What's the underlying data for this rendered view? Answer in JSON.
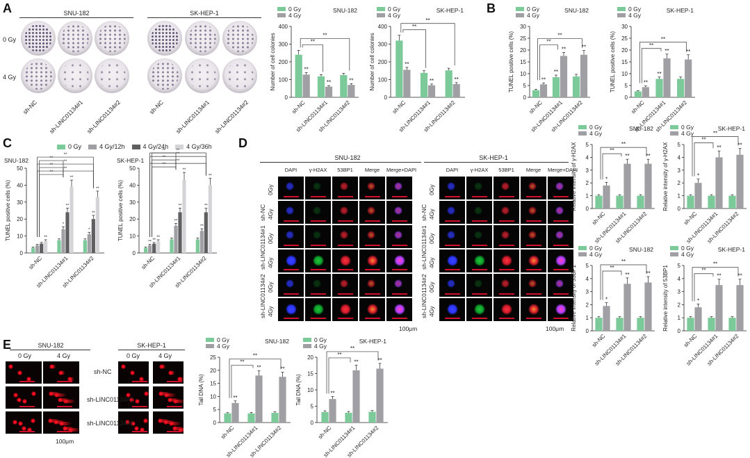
{
  "colors": {
    "green": "#7cc99a",
    "gray": "#a0a0a4",
    "darkgray": "#5f5f62",
    "lightgray": "#d4d4d6",
    "axis": "#222222"
  },
  "panelA": {
    "letter": "A",
    "groups": [
      {
        "title": "SNU-182"
      },
      {
        "title": "SK-HEP-1"
      }
    ],
    "rows": [
      "0 Gy",
      "4 Gy"
    ],
    "cols": [
      "sh-NC",
      "sh-LINC01134#1",
      "sh-LINC01134#2"
    ]
  },
  "panelB": {
    "letter": "B"
  },
  "panelC": {
    "letter": "C",
    "legend": [
      "0 Gy",
      "4 Gy/12h",
      "4 Gy/24h",
      "4 Gy/36h"
    ]
  },
  "panelD": {
    "letter": "D",
    "groups": [
      {
        "title": "SNU-182"
      },
      {
        "title": "SK-HEP-1"
      }
    ],
    "columns": [
      "DAPI",
      "γ-H2AX",
      "53BP1",
      "Merge",
      "Merge+DAPI"
    ],
    "rowGroups": [
      "sh-NC",
      "sh-LINC01134#1",
      "sh-LINC01134#2"
    ],
    "doses": [
      "0Gy",
      "4Gy"
    ],
    "scale": "100μm"
  },
  "panelE": {
    "letter": "E",
    "groups": [
      {
        "title": "SNU-182"
      },
      {
        "title": "SK-HEP-1"
      }
    ],
    "doses": [
      "0 Gy",
      "4 Gy"
    ],
    "rows": [
      "sh-NC",
      "sh-LINC01134#1",
      "sh-LINC01134#2"
    ],
    "scale": "100μm"
  },
  "chart_data": [
    {
      "id": "A-SNU",
      "type": "bar",
      "title": "SNU-182",
      "ylabel": "Number of cell colonies",
      "categories": [
        "sh-NC",
        "sh-LINC01134#1",
        "sh-LINC01134#2"
      ],
      "ylim": [
        0,
        400
      ],
      "yticks": [
        0,
        100,
        200,
        300,
        400
      ],
      "series": [
        {
          "name": "0 Gy",
          "values": [
            240,
            118,
            125
          ],
          "errors": [
            25,
            10,
            10
          ]
        },
        {
          "name": "4 Gy",
          "values": [
            128,
            60,
            70
          ],
          "errors": [
            12,
            6,
            7
          ]
        }
      ],
      "marks": [
        [
          "",
          "**"
        ],
        [
          "",
          "**"
        ],
        [
          "",
          "**"
        ]
      ],
      "brackets": [
        "**",
        "**"
      ]
    },
    {
      "id": "A-SK",
      "type": "bar",
      "title": "SK-HEP-1",
      "ylabel": "Number of cell colonies",
      "categories": [
        "sh-NC",
        "sh-LINC01134#1",
        "sh-LINC01134#2"
      ],
      "ylim": [
        0,
        400
      ],
      "yticks": [
        0,
        100,
        200,
        300,
        400
      ],
      "series": [
        {
          "name": "0 Gy",
          "values": [
            320,
            138,
            152
          ],
          "errors": [
            30,
            12,
            12
          ]
        },
        {
          "name": "4 Gy",
          "values": [
            155,
            68,
            75
          ],
          "errors": [
            14,
            7,
            8
          ]
        }
      ],
      "marks": [
        [
          "",
          "**"
        ],
        [
          "",
          "**"
        ],
        [
          "",
          "**"
        ]
      ],
      "brackets": [
        "**",
        "**"
      ]
    },
    {
      "id": "B-SNU",
      "type": "bar",
      "title": "SNU-182",
      "ylabel": "TUNEL positive cells (%)",
      "categories": [
        "sh-NC",
        "sh-LINC01134#1",
        "sh-LINC01134#2"
      ],
      "ylim": [
        0,
        30
      ],
      "yticks": [
        0,
        5,
        10,
        15,
        20,
        25,
        30
      ],
      "series": [
        {
          "name": "0 Gy",
          "values": [
            3,
            8.5,
            8.8
          ],
          "errors": [
            0.4,
            0.9,
            0.9
          ]
        },
        {
          "name": "4 Gy",
          "values": [
            5.5,
            17.5,
            18
          ],
          "errors": [
            0.6,
            1.5,
            1.8
          ]
        }
      ],
      "marks": [
        [
          "",
          "**"
        ],
        [
          "**",
          "**"
        ],
        [
          "",
          "**"
        ]
      ],
      "brackets": [
        "**",
        "**"
      ]
    },
    {
      "id": "B-SK",
      "type": "bar",
      "title": "SK-HEP-1",
      "ylabel": "TUNEL positive cells (%)",
      "categories": [
        "sh-NC",
        "sh-LINC01134#1",
        "sh-LINC01134#2"
      ],
      "ylim": [
        0,
        30
      ],
      "yticks": [
        0,
        5,
        10,
        15,
        20,
        25,
        30
      ],
      "series": [
        {
          "name": "0 Gy",
          "values": [
            2.5,
            7.8,
            7.8
          ],
          "errors": [
            0.3,
            0.8,
            0.8
          ]
        },
        {
          "name": "4 Gy",
          "values": [
            4.3,
            16.5,
            16
          ],
          "errors": [
            0.5,
            1.8,
            2
          ]
        }
      ],
      "marks": [
        [
          "",
          "**"
        ],
        [
          "**",
          "**"
        ],
        [
          "",
          "**"
        ]
      ],
      "brackets": [
        "**",
        "**"
      ]
    },
    {
      "id": "C-SNU",
      "type": "bar",
      "title": "SNU-182",
      "ylabel": "TUNEL positive cells (%)",
      "categories": [
        "sh-NC",
        "sh-LINC01134#1",
        "sh-LINC01134#2"
      ],
      "ylim": [
        0,
        50
      ],
      "yticks": [
        0,
        10,
        20,
        30,
        40,
        50
      ],
      "series": [
        {
          "name": "0 Gy",
          "values": [
            3,
            7.5,
            7.5
          ],
          "errors": [
            0.5,
            0.8,
            0.8
          ]
        },
        {
          "name": "4 Gy/12h",
          "values": [
            4.5,
            14,
            11
          ],
          "errors": [
            0.6,
            1.5,
            1.2
          ]
        },
        {
          "name": "4 Gy/24h",
          "values": [
            5.5,
            24,
            20
          ],
          "errors": [
            0.7,
            2.5,
            2.2
          ]
        },
        {
          "name": "4 Gy/36h",
          "values": [
            7,
            39,
            33
          ],
          "errors": [
            0.8,
            4,
            3.5
          ]
        }
      ],
      "marks": [
        [
          "",
          "",
          "",
          "**"
        ],
        [
          "",
          "*",
          "**",
          "**"
        ],
        [
          "",
          "*",
          "**",
          "**"
        ]
      ],
      "brackets": [
        "**",
        "**",
        "**",
        "**",
        "**",
        "**"
      ]
    },
    {
      "id": "C-SK",
      "type": "bar",
      "title": "SK-HEP-1",
      "ylabel": "TUNEL positive cells (%)",
      "categories": [
        "sh-NC",
        "sh-LINC01134#1",
        "sh-LINC01134#2"
      ],
      "ylim": [
        0,
        50
      ],
      "yticks": [
        0,
        10,
        20,
        30,
        40,
        50
      ],
      "series": [
        {
          "name": "0 Gy",
          "values": [
            3,
            8,
            8
          ],
          "errors": [
            0.5,
            0.8,
            0.8
          ]
        },
        {
          "name": "4 Gy/12h",
          "values": [
            4.5,
            16,
            13
          ],
          "errors": [
            0.6,
            1.5,
            1.3
          ]
        },
        {
          "name": "4 Gy/24h",
          "values": [
            5.5,
            24,
            24
          ],
          "errors": [
            0.7,
            2.5,
            2.4
          ]
        },
        {
          "name": "4 Gy/36h",
          "values": [
            7,
            43,
            40
          ],
          "errors": [
            0.8,
            4.5,
            4
          ]
        }
      ],
      "marks": [
        [
          "",
          "**",
          "**",
          "**"
        ],
        [
          "",
          "**",
          "**",
          "**"
        ],
        [
          "",
          "**",
          "**",
          "**"
        ]
      ],
      "brackets": [
        "**",
        "**",
        "**",
        "**",
        "**",
        "**"
      ]
    },
    {
      "id": "D-SNU-H2AX",
      "type": "bar",
      "title": "SNU-182",
      "ylabel": "Relative intensity of γ-H2AX",
      "categories": [
        "sh-NC",
        "sh-LINC01134#1",
        "sh-LINC01134#2"
      ],
      "ylim": [
        0,
        5
      ],
      "yticks": [
        0,
        1,
        2,
        3,
        4,
        5
      ],
      "series": [
        {
          "name": "0 Gy",
          "values": [
            1,
            1,
            1
          ],
          "errors": [
            0.08,
            0.08,
            0.08
          ]
        },
        {
          "name": "4 Gy",
          "values": [
            1.8,
            3.5,
            3.5
          ],
          "errors": [
            0.25,
            0.35,
            0.35
          ]
        }
      ],
      "marks": [
        [
          "",
          "*"
        ],
        [
          "",
          "**"
        ],
        [
          "",
          "**"
        ]
      ],
      "brackets": [
        "**",
        "**"
      ]
    },
    {
      "id": "D-SK-H2AX",
      "type": "bar",
      "title": "SK-HEP-1",
      "ylabel": "Relative intensity of γ-H2AX",
      "categories": [
        "sh-NC",
        "sh-LINC01134#1",
        "sh-LINC01134#2"
      ],
      "ylim": [
        0,
        5
      ],
      "yticks": [
        0,
        1,
        2,
        3,
        4,
        5
      ],
      "series": [
        {
          "name": "0 Gy",
          "values": [
            1,
            1,
            1
          ],
          "errors": [
            0.08,
            0.08,
            0.08
          ]
        },
        {
          "name": "4 Gy",
          "values": [
            2,
            4,
            4.2
          ],
          "errors": [
            0.3,
            0.5,
            0.5
          ]
        }
      ],
      "marks": [
        [
          "",
          "*"
        ],
        [
          "",
          "**"
        ],
        [
          "",
          "**"
        ]
      ],
      "brackets": [
        "**",
        "**"
      ]
    },
    {
      "id": "D-SNU-53BP1",
      "type": "bar",
      "title": "SNU-182",
      "ylabel": "Relative intensity of 53BP1",
      "categories": [
        "sh-NC",
        "sh-LINC01134#1",
        "sh-LINC01134#2"
      ],
      "ylim": [
        0,
        5
      ],
      "yticks": [
        0,
        1,
        2,
        3,
        4,
        5
      ],
      "series": [
        {
          "name": "0 Gy",
          "values": [
            1,
            1,
            1
          ],
          "errors": [
            0.08,
            0.08,
            0.08
          ]
        },
        {
          "name": "4 Gy",
          "values": [
            1.9,
            3.6,
            3.7
          ],
          "errors": [
            0.25,
            0.45,
            0.45
          ]
        }
      ],
      "marks": [
        [
          "",
          "*"
        ],
        [
          "",
          "**"
        ],
        [
          "",
          "**"
        ]
      ],
      "brackets": [
        "**",
        "**"
      ]
    },
    {
      "id": "D-SK-53BP1",
      "type": "bar",
      "title": "SK-HEP-1",
      "ylabel": "Relative intensity of 53BP1",
      "categories": [
        "sh-NC",
        "sh-LINC01134#1",
        "sh-LINC01134#2"
      ],
      "ylim": [
        0,
        5
      ],
      "yticks": [
        0,
        1,
        2,
        3,
        4,
        5
      ],
      "series": [
        {
          "name": "0 Gy",
          "values": [
            1,
            1,
            1
          ],
          "errors": [
            0.08,
            0.08,
            0.08
          ]
        },
        {
          "name": "4 Gy",
          "values": [
            1.8,
            3.5,
            3.5
          ],
          "errors": [
            0.25,
            0.45,
            0.45
          ]
        }
      ],
      "marks": [
        [
          "",
          "*"
        ],
        [
          "",
          "**"
        ],
        [
          "",
          "**"
        ]
      ],
      "brackets": [
        "**",
        "**"
      ]
    },
    {
      "id": "E-SNU",
      "type": "bar",
      "title": "SNU-182",
      "ylabel": "Tail DNA (%)",
      "categories": [
        "sh-NC",
        "sh-LINC01134#1",
        "sh-LINC01134#2"
      ],
      "ylim": [
        0,
        25
      ],
      "yticks": [
        0,
        5,
        10,
        15,
        20,
        25
      ],
      "series": [
        {
          "name": "0 Gy",
          "values": [
            3.5,
            3.5,
            3.7
          ],
          "errors": [
            0.3,
            0.4,
            0.4
          ]
        },
        {
          "name": "4 Gy",
          "values": [
            7.5,
            18,
            17.5
          ],
          "errors": [
            0.8,
            1.8,
            1.8
          ]
        }
      ],
      "marks": [
        [
          "",
          "**"
        ],
        [
          "",
          "**"
        ],
        [
          "",
          "**"
        ]
      ],
      "brackets": [
        "**",
        "**"
      ]
    },
    {
      "id": "E-SK",
      "type": "bar",
      "title": "SK-HEP-1",
      "ylabel": "Tail DNA (%)",
      "categories": [
        "sh-NC",
        "sh-LINC01134#1",
        "sh-LINC01134#2"
      ],
      "ylim": [
        0,
        20
      ],
      "yticks": [
        0,
        5,
        10,
        15,
        20
      ],
      "series": [
        {
          "name": "0 Gy",
          "values": [
            3.2,
            3,
            3.3
          ],
          "errors": [
            0.4,
            0.4,
            0.4
          ]
        },
        {
          "name": "4 Gy",
          "values": [
            7.2,
            16,
            16.5
          ],
          "errors": [
            0.8,
            1.6,
            1.6
          ]
        }
      ],
      "marks": [
        [
          "",
          "**"
        ],
        [
          "",
          "**"
        ],
        [
          "",
          "**"
        ]
      ],
      "brackets": [
        "**",
        "**"
      ]
    }
  ]
}
